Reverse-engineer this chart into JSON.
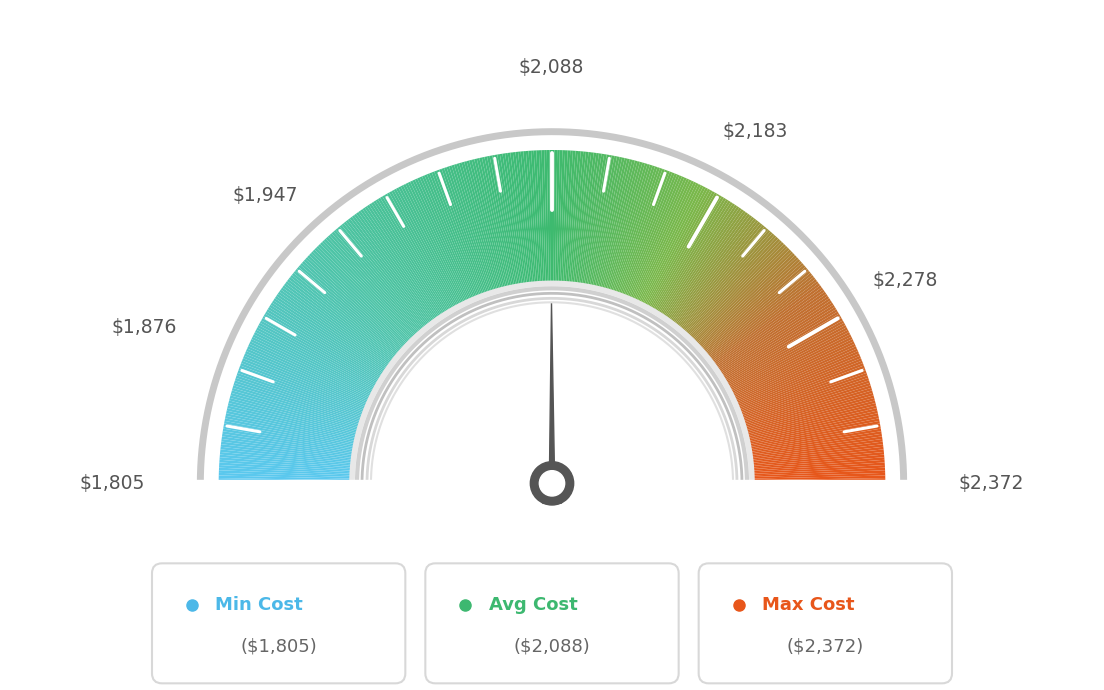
{
  "min_val": 1805,
  "avg_val": 2088,
  "max_val": 2372,
  "labels": {
    "label_1805": "$1,805",
    "label_1876": "$1,876",
    "label_1947": "$1,947",
    "label_2088": "$2,088",
    "label_2183": "$2,183",
    "label_2278": "$2,278",
    "label_2372": "$2,372"
  },
  "legend": [
    {
      "label": "Min Cost",
      "value": "($1,805)",
      "color": "#4cb8e8"
    },
    {
      "label": "Avg Cost",
      "value": "($2,088)",
      "color": "#3db870"
    },
    {
      "label": "Max Cost",
      "value": "($2,372)",
      "color": "#e8561a"
    }
  ],
  "bg_color": "#ffffff",
  "gauge_color_stops": [
    [
      0.0,
      "#5bc8f0"
    ],
    [
      0.25,
      "#4ec4a8"
    ],
    [
      0.5,
      "#3dba6f"
    ],
    [
      0.65,
      "#7ab84a"
    ],
    [
      0.8,
      "#c07030"
    ],
    [
      1.0,
      "#e8561a"
    ]
  ],
  "tick_label_color": "#555555",
  "needle_color": "#555555"
}
